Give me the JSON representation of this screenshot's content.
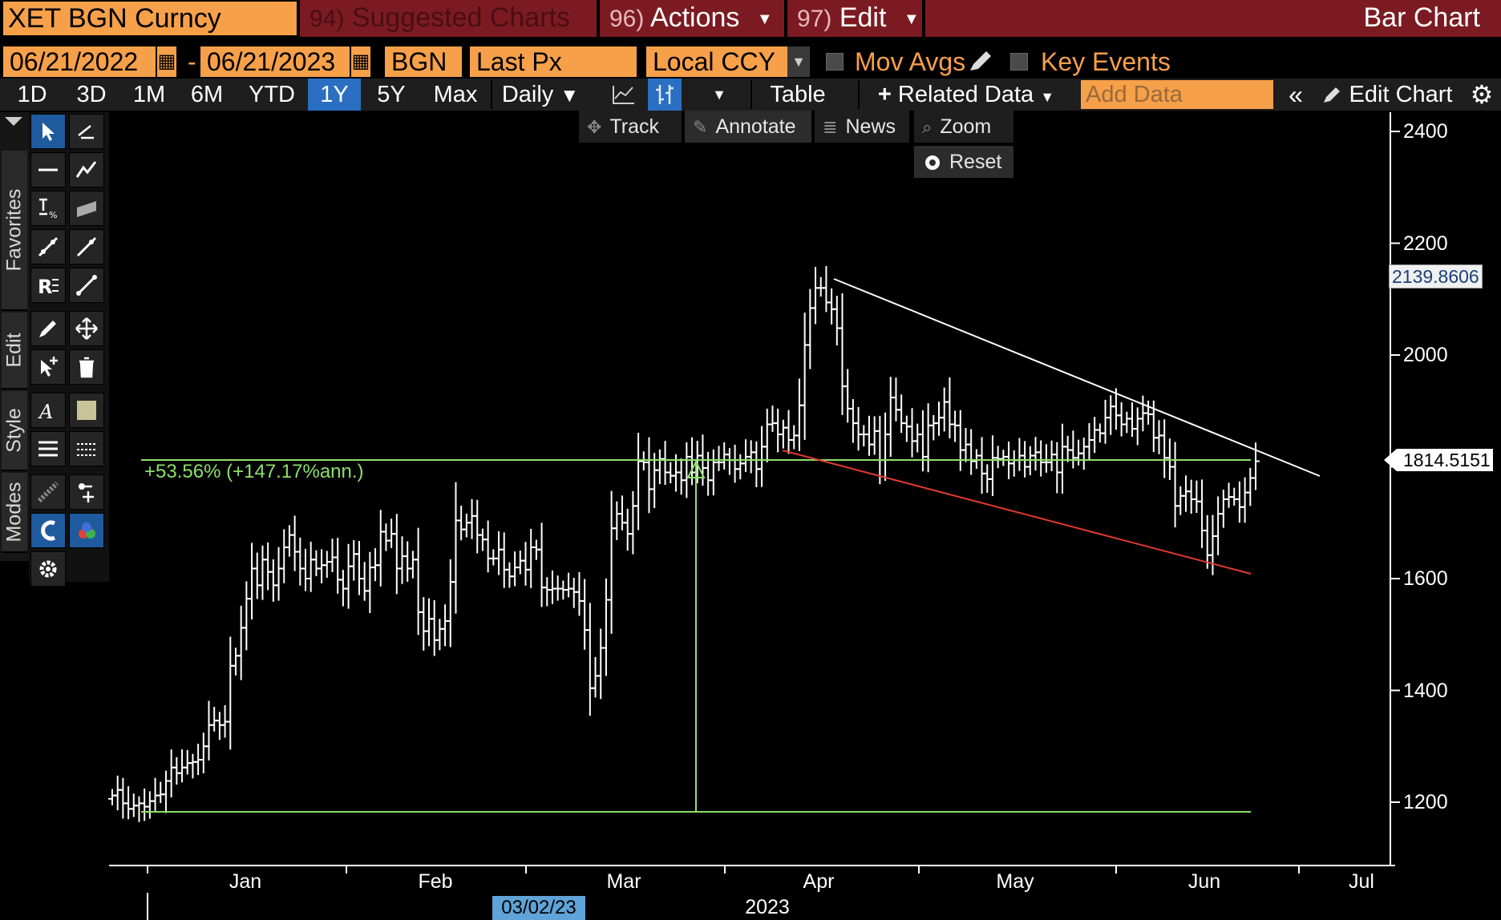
{
  "header": {
    "ticker": "XET BGN Curncy",
    "suggested": {
      "num": "94)",
      "label": "Suggested Charts"
    },
    "actions": {
      "num": "96)",
      "label": "Actions"
    },
    "edit": {
      "num": "97)",
      "label": "Edit"
    },
    "title": "Bar Chart"
  },
  "params": {
    "start_date": "06/21/2022",
    "end_date": "06/21/2023",
    "security": "BGN",
    "field": "Last Px",
    "currency": "Local CCY",
    "mov_avgs": "Mov Avgs",
    "key_events": "Key Events"
  },
  "periods": [
    "1D",
    "3D",
    "1M",
    "6M",
    "YTD",
    "1Y",
    "5Y",
    "Max"
  ],
  "active_period": "1Y",
  "toolbar": {
    "frequency": "Daily",
    "table": "Table",
    "related": "Related Data",
    "add_data_placeholder": "Add Data",
    "edit_chart": "Edit Chart"
  },
  "side_tabs": [
    "Favorites",
    "Edit",
    "Style",
    "Modes"
  ],
  "chart_controls": {
    "track": "Track",
    "annotate": "Annotate",
    "news": "News",
    "zoom": "Zoom",
    "reset": "Reset"
  },
  "chart_data": {
    "type": "ohlc_bar",
    "ylim": [
      1080,
      2460
    ],
    "y_ticks": [
      1200,
      1400,
      1600,
      1800,
      2000,
      2200,
      2400
    ],
    "y_tick_labels": [
      "1200",
      "1400",
      "1600",
      "",
      "2000",
      "2200",
      "2400"
    ],
    "x_tick_labels": [
      "Jan",
      "Feb",
      "Mar",
      "Apr",
      "May",
      "Jun",
      "Jul"
    ],
    "year_label": "2023",
    "cursor_date": "03/02/23",
    "last_price": "1814.5151",
    "marker_price": "2139.8606",
    "change_label": "+53.56% (+147.17%ann.)",
    "colors": {
      "bars": "#ffffff",
      "measure": "#8de06a",
      "upper_trend": "#ffffff",
      "lower_trend": "#e03a2f"
    },
    "closes": [
      1212,
      1222,
      1198,
      1188,
      1194,
      1198,
      1192,
      1202,
      1212,
      1214,
      1238,
      1262,
      1252,
      1262,
      1270,
      1272,
      1276,
      1300,
      1338,
      1346,
      1338,
      1344,
      1444,
      1462,
      1512,
      1564,
      1618,
      1588,
      1634,
      1612,
      1588,
      1618,
      1656,
      1678,
      1648,
      1618,
      1600,
      1634,
      1618,
      1624,
      1630,
      1638,
      1598,
      1582,
      1622,
      1644,
      1600,
      1578,
      1620,
      1624,
      1684,
      1668,
      1680,
      1618,
      1640,
      1618,
      1634,
      1540,
      1506,
      1528,
      1490,
      1510,
      1524,
      1594,
      1704,
      1688,
      1700,
      1712,
      1678,
      1670,
      1636,
      1636,
      1652,
      1616,
      1604,
      1620,
      1632,
      1616,
      1656,
      1652,
      1584,
      1580,
      1582,
      1582,
      1580,
      1582,
      1576,
      1560,
      1508,
      1404,
      1426,
      1476,
      1562,
      1690,
      1716,
      1700,
      1680,
      1730,
      1810,
      1808,
      1760,
      1794,
      1814,
      1790,
      1784,
      1790,
      1776,
      1818,
      1790,
      1820,
      1798,
      1776,
      1808,
      1808,
      1822,
      1812,
      1796,
      1806,
      1818,
      1826,
      1796,
      1836,
      1876,
      1878,
      1858,
      1870,
      1848,
      1856,
      1910,
      2018,
      2084,
      2120,
      2120,
      2094,
      2082,
      2048,
      1944,
      1904,
      1878,
      1858,
      1858,
      1840,
      1864,
      1812,
      1858,
      1924,
      1902,
      1878,
      1872,
      1846,
      1858,
      1818,
      1874,
      1878,
      1888,
      1916,
      1876,
      1874,
      1830,
      1840,
      1810,
      1820,
      1788,
      1778,
      1816,
      1814,
      1818,
      1806,
      1812,
      1820,
      1800,
      1820,
      1826,
      1808,
      1808,
      1822,
      1790,
      1836,
      1830,
      1816,
      1824,
      1836,
      1848,
      1866,
      1860,
      1888,
      1908,
      1892,
      1876,
      1886,
      1868,
      1886,
      1896,
      1894,
      1852,
      1856,
      1816,
      1800,
      1730,
      1748,
      1756,
      1742,
      1738,
      1686,
      1642,
      1676,
      1716,
      1742,
      1746,
      1742,
      1728,
      1754,
      1780,
      1810
    ]
  }
}
